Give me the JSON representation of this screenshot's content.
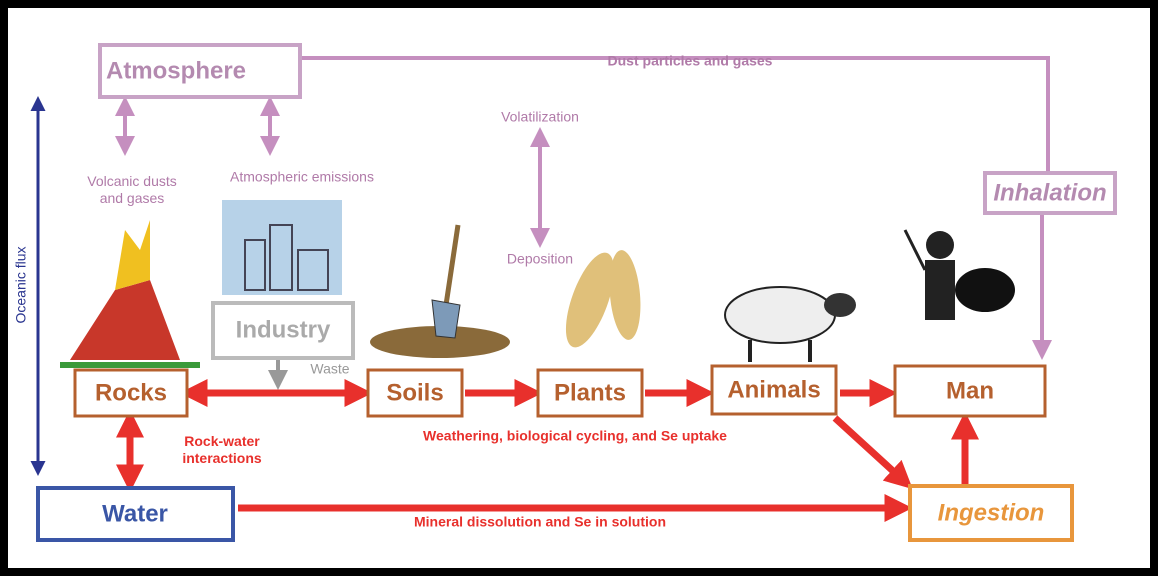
{
  "nodes": {
    "atmosphere": "Atmosphere",
    "inhalation": "Inhalation",
    "industry": "Industry",
    "rocks": "Rocks",
    "soils": "Soils",
    "plants": "Plants",
    "animals": "Animals",
    "man": "Man",
    "water": "Water",
    "ingestion": "Ingestion"
  },
  "edges": {
    "dust": "Dust particles and gases",
    "volatilization": "Volatilization",
    "deposition": "Deposition",
    "volcanic": [
      "Volcanic dusts",
      "and gases"
    ],
    "emissions": "Atmospheric emissions",
    "waste": "Waste",
    "oceanic": "Oceanic flux",
    "rockwater": [
      "Rock-water",
      "interactions"
    ],
    "weathering": "Weathering, biological cycling, and Se uptake",
    "mineral": "Mineral dissolution and Se in solution"
  }
}
